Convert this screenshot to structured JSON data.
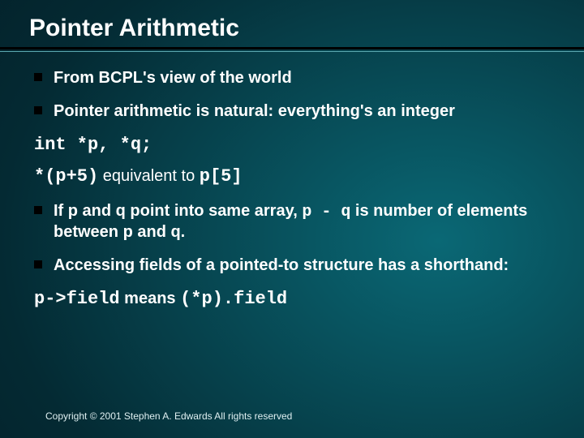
{
  "slide": {
    "title": "Pointer Arithmetic",
    "bullets": [
      {
        "text": "From BCPL's view of the world"
      },
      {
        "text": "Pointer arithmetic is natural: everything's an integer"
      }
    ],
    "code1": "int *p, *q;",
    "equiv": {
      "lhs": "*(p+5)",
      "mid": " equivalent to ",
      "rhs": "p[5]"
    },
    "bullets2": [
      {
        "pre": "If p and q point into same array, ",
        "code": "p - q",
        "post": " is number of elements between p and q."
      },
      {
        "pre": "Accessing fields of a pointed-to structure has a shorthand:",
        "code": "",
        "post": ""
      }
    ],
    "means": {
      "lhs": "p->field",
      "mid": " means ",
      "rhs": "(*p).field"
    },
    "footer": "Copyright © 2001 Stephen A. Edwards  All rights reserved"
  },
  "style": {
    "title_fontsize": 30,
    "body_fontsize": 20,
    "code_fontsize": 22,
    "footer_fontsize": 12,
    "text_color": "#ffffff",
    "bullet_color": "#000000",
    "rule_outer_color": "#000000",
    "rule_inner_color": "#5aa8b0",
    "bg_gradient": {
      "center": "#0a6875",
      "mid": "#074954",
      "outer": "#042a33",
      "edge": "#021820"
    }
  }
}
